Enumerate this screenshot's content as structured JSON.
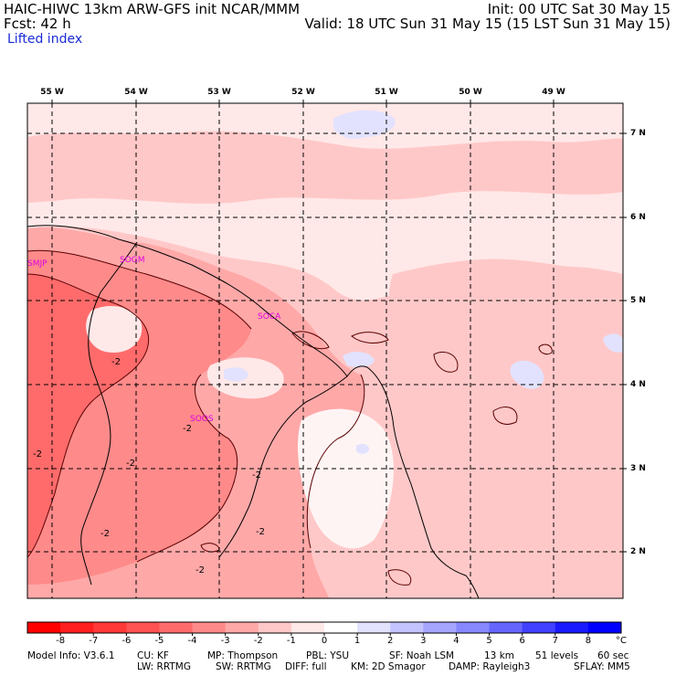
{
  "header": {
    "title": "HAIC-HIWC 13km ARW-GFS init   NCAR/MMM",
    "init": "Init: 00 UTC Sat 30 May 15",
    "fcst": "Fcst:   42 h",
    "valid": "Valid: 18 UTC Sun 31 May 15 (15 LST Sun 31 May 15)",
    "field": "Lifted index"
  },
  "map": {
    "longitudes": [
      "55 W",
      "54 W",
      "53 W",
      "52 W",
      "51 W",
      "50 W",
      "49 W"
    ],
    "latitudes": [
      "7 N",
      "6 N",
      "5 N",
      "4 N",
      "3 N",
      "2 N"
    ],
    "stations": [
      "SMJP",
      "SOGM",
      "SOCA",
      "SOOS"
    ],
    "contour_label": "-2"
  },
  "colorbar": {
    "values": [
      "-8",
      "-7",
      "-6",
      "-5",
      "-4",
      "-3",
      "-2",
      "-1",
      "0",
      "1",
      "2",
      "3",
      "4",
      "5",
      "6",
      "7",
      "8"
    ],
    "unit": "°C",
    "colors": [
      "#ff0000",
      "#ff1f1f",
      "#ff3838",
      "#ff5252",
      "#ff6b6b",
      "#ff8a8a",
      "#ffa8a8",
      "#ffc8c8",
      "#ffe8e8",
      "#ffffff",
      "#e2e2ff",
      "#c3c3ff",
      "#a5a5ff",
      "#8787ff",
      "#6666ff",
      "#4141ff",
      "#1a1aff",
      "#0000ff"
    ]
  },
  "footer": {
    "line1": [
      "Model Info: V3.6.1",
      "CU: KF",
      "MP: Thompson",
      "PBL: YSU",
      "SF: Noah LSM",
      "13 km",
      "51 levels",
      "60 sec"
    ],
    "line2": [
      "LW: RRTMG",
      "SW: RRTMG",
      "DIFF: full",
      "KM: 2D Smagor",
      "DAMP: Rayleigh3",
      "SFLAY: MM5"
    ]
  }
}
